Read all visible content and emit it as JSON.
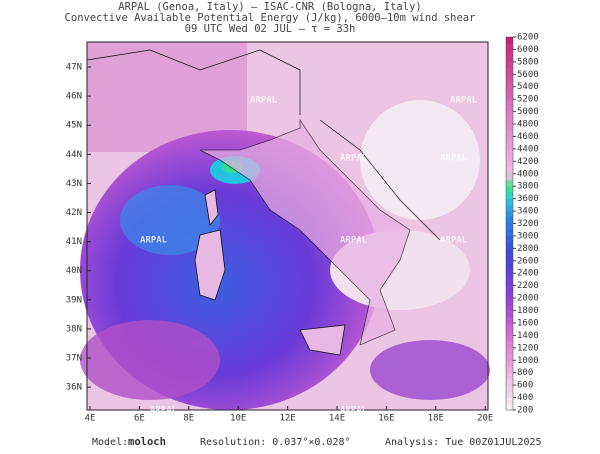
{
  "header": {
    "line1": "ARPAL (Genoa, Italy)  –  ISAC-CNR (Bologna, Italy)",
    "line2": "Convective Available Potential Energy (J/kg), 6000–10m wind shear",
    "line3": "09 UTC Wed 02 JUL  –  τ = 33h"
  },
  "map": {
    "watermark": "ARPAL",
    "lon_labels": [
      "4E",
      "6E",
      "8E",
      "10E",
      "12E",
      "14E",
      "16E",
      "18E",
      "20E"
    ],
    "lat_labels": [
      "47N",
      "46N",
      "45N",
      "44N",
      "43N",
      "42N",
      "41N",
      "40N",
      "39N",
      "38N",
      "37N",
      "36N"
    ]
  },
  "colorbar": {
    "ticks": [
      6200,
      6000,
      5800,
      5600,
      5400,
      5200,
      5000,
      4800,
      4600,
      4400,
      4200,
      4000,
      3800,
      3600,
      3400,
      3200,
      3000,
      2800,
      2600,
      2400,
      2200,
      2000,
      1800,
      1600,
      1400,
      1200,
      1000,
      800,
      600,
      400,
      200
    ]
  },
  "footer": {
    "model_label": "Model:",
    "model": "moloch",
    "resolution": "Resolution: 0.037°×0.028°",
    "analysis": "Analysis: Tue 00Z01JUL2025"
  }
}
